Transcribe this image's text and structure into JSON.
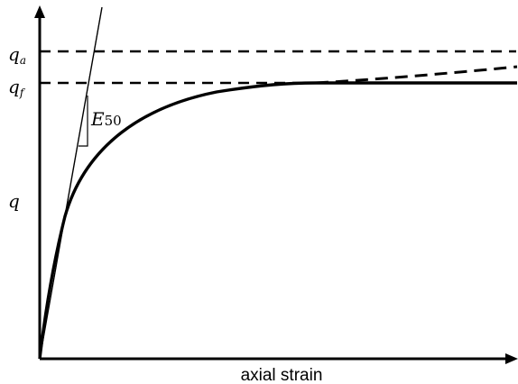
{
  "labels": {
    "y_axis": "q",
    "q_a_main": "q",
    "q_a_sub": "a",
    "q_f_main": "q",
    "q_f_sub": "f",
    "secant_main": "E",
    "secant_sub": "50",
    "x_axis": "axial strain"
  },
  "colors": {
    "stroke": "#000000",
    "background": "#ffffff"
  }
}
